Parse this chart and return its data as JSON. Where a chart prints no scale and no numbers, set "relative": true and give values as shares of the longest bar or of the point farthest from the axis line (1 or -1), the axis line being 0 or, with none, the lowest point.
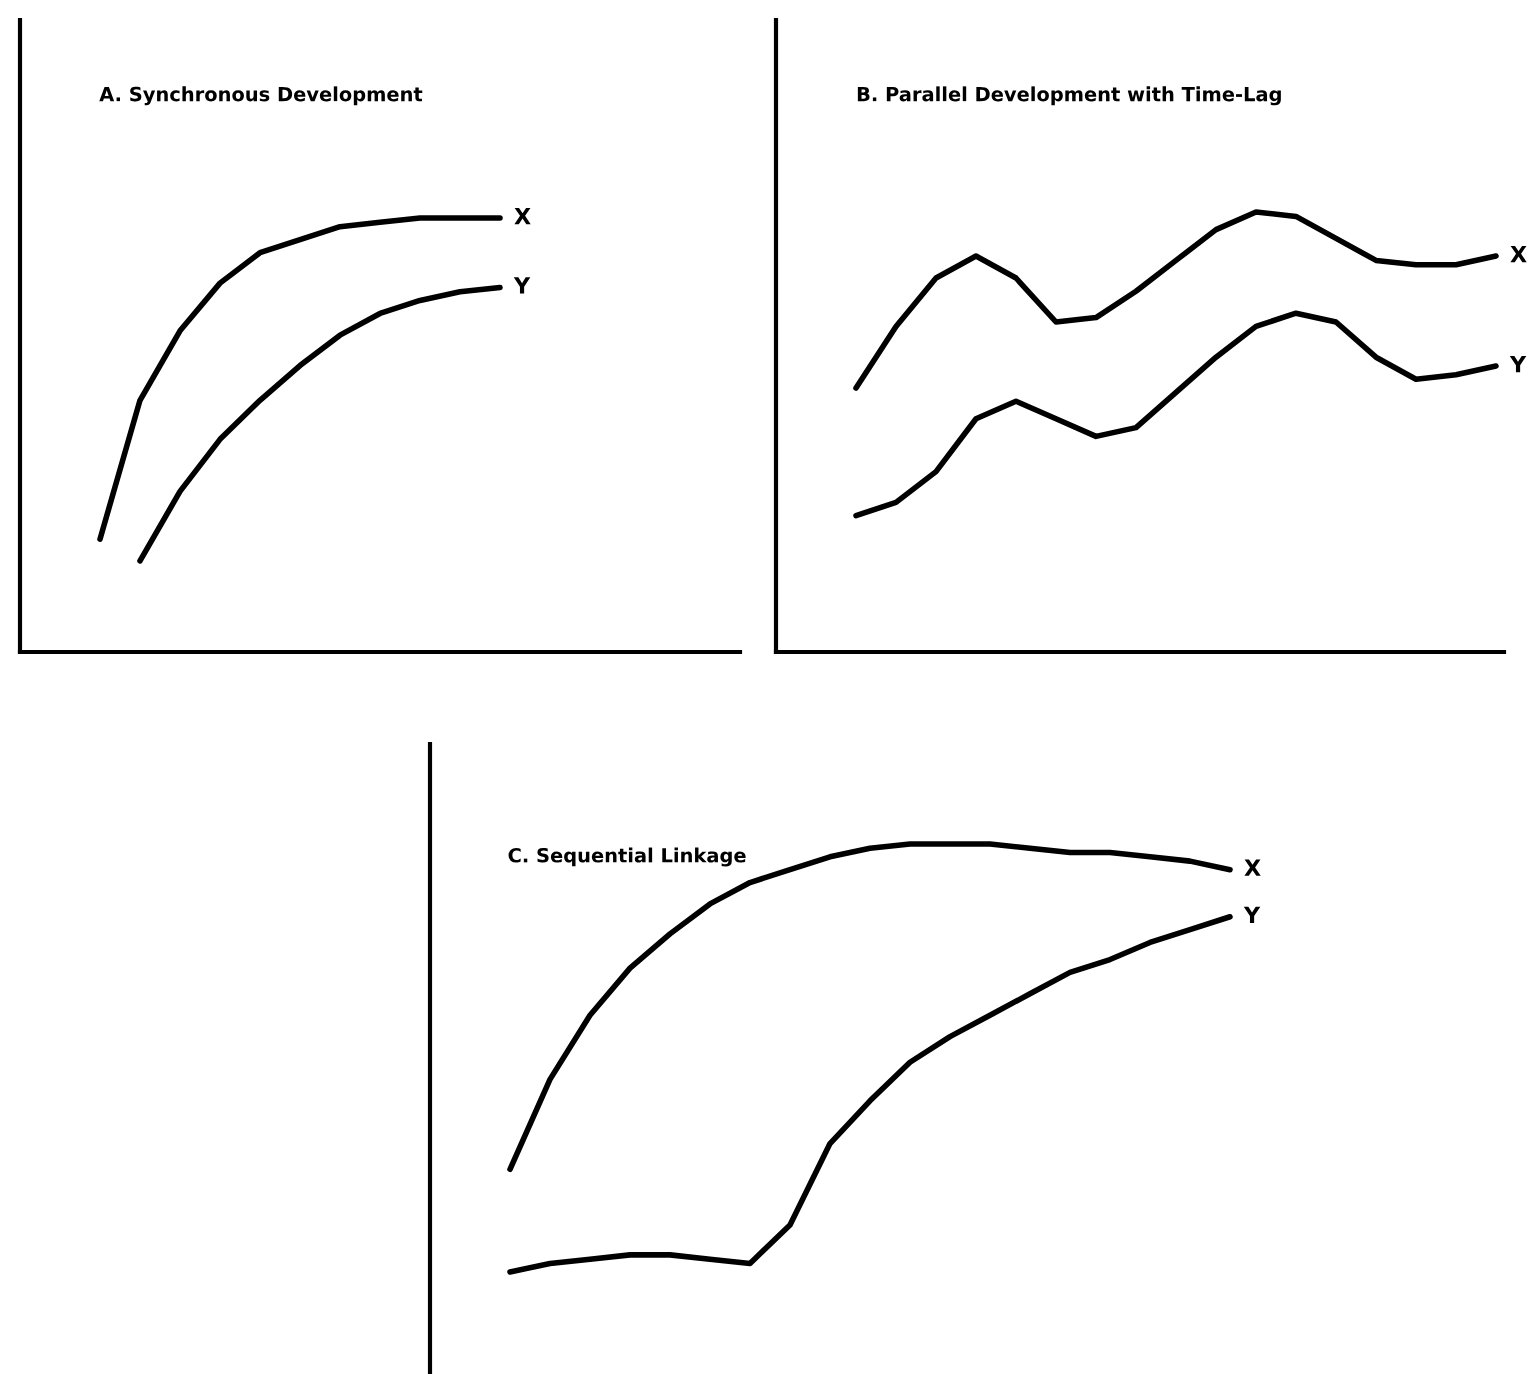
{
  "chart_data": [
    {
      "type": "line",
      "relative": true,
      "title": "A. Synchronous Development",
      "categories": [
        null,
        null,
        null,
        null,
        null,
        null,
        null,
        null,
        null,
        null,
        null
      ],
      "series": [
        {
          "name": "X",
          "color": "#000000",
          "values": [
            0.26,
            0.58,
            0.74,
            0.85,
            0.92,
            0.95,
            0.98,
            0.99,
            1.0,
            1.0,
            1.0
          ]
        },
        {
          "name": "Y",
          "color": "#000000",
          "values": [
            null,
            0.21,
            0.37,
            0.49,
            0.58,
            0.66,
            0.73,
            0.78,
            0.81,
            0.83,
            0.84
          ]
        }
      ]
    },
    {
      "type": "line",
      "relative": true,
      "title": "B. Parallel Development with Time-Lag",
      "categories": [
        null,
        null,
        null,
        null,
        null,
        null,
        null,
        null,
        null,
        null,
        null,
        null,
        null,
        null,
        null,
        null,
        null
      ],
      "series": [
        {
          "name": "X",
          "color": "#000000",
          "values": [
            0.6,
            0.74,
            0.85,
            0.9,
            0.85,
            0.75,
            0.76,
            0.82,
            0.89,
            0.96,
            1.0,
            0.99,
            0.94,
            0.89,
            0.88,
            0.88,
            0.9
          ]
        },
        {
          "name": "Y",
          "color": "#000000",
          "values": [
            0.31,
            0.34,
            0.41,
            0.53,
            0.57,
            0.53,
            0.49,
            0.51,
            0.59,
            0.67,
            0.74,
            0.77,
            0.75,
            0.67,
            0.62,
            0.63,
            0.65
          ]
        }
      ]
    },
    {
      "type": "line",
      "relative": true,
      "title": "C. Sequential Linkage",
      "categories": [
        null,
        null,
        null,
        null,
        null,
        null,
        null,
        null,
        null,
        null,
        null,
        null,
        null,
        null,
        null,
        null,
        null,
        null,
        null
      ],
      "series": [
        {
          "name": "X",
          "color": "#000000",
          "values": [
            0.24,
            0.45,
            0.6,
            0.71,
            0.79,
            0.86,
            0.91,
            0.94,
            0.97,
            0.99,
            1.0,
            1.0,
            1.0,
            0.99,
            0.98,
            0.98,
            0.97,
            0.96,
            0.94
          ]
        },
        {
          "name": "Y",
          "color": "#000000",
          "values": [
            0.0,
            0.02,
            0.03,
            0.04,
            0.04,
            0.03,
            0.02,
            0.11,
            0.3,
            0.4,
            0.49,
            0.55,
            0.6,
            0.65,
            0.7,
            0.73,
            0.77,
            0.8,
            0.83
          ]
        }
      ]
    }
  ]
}
